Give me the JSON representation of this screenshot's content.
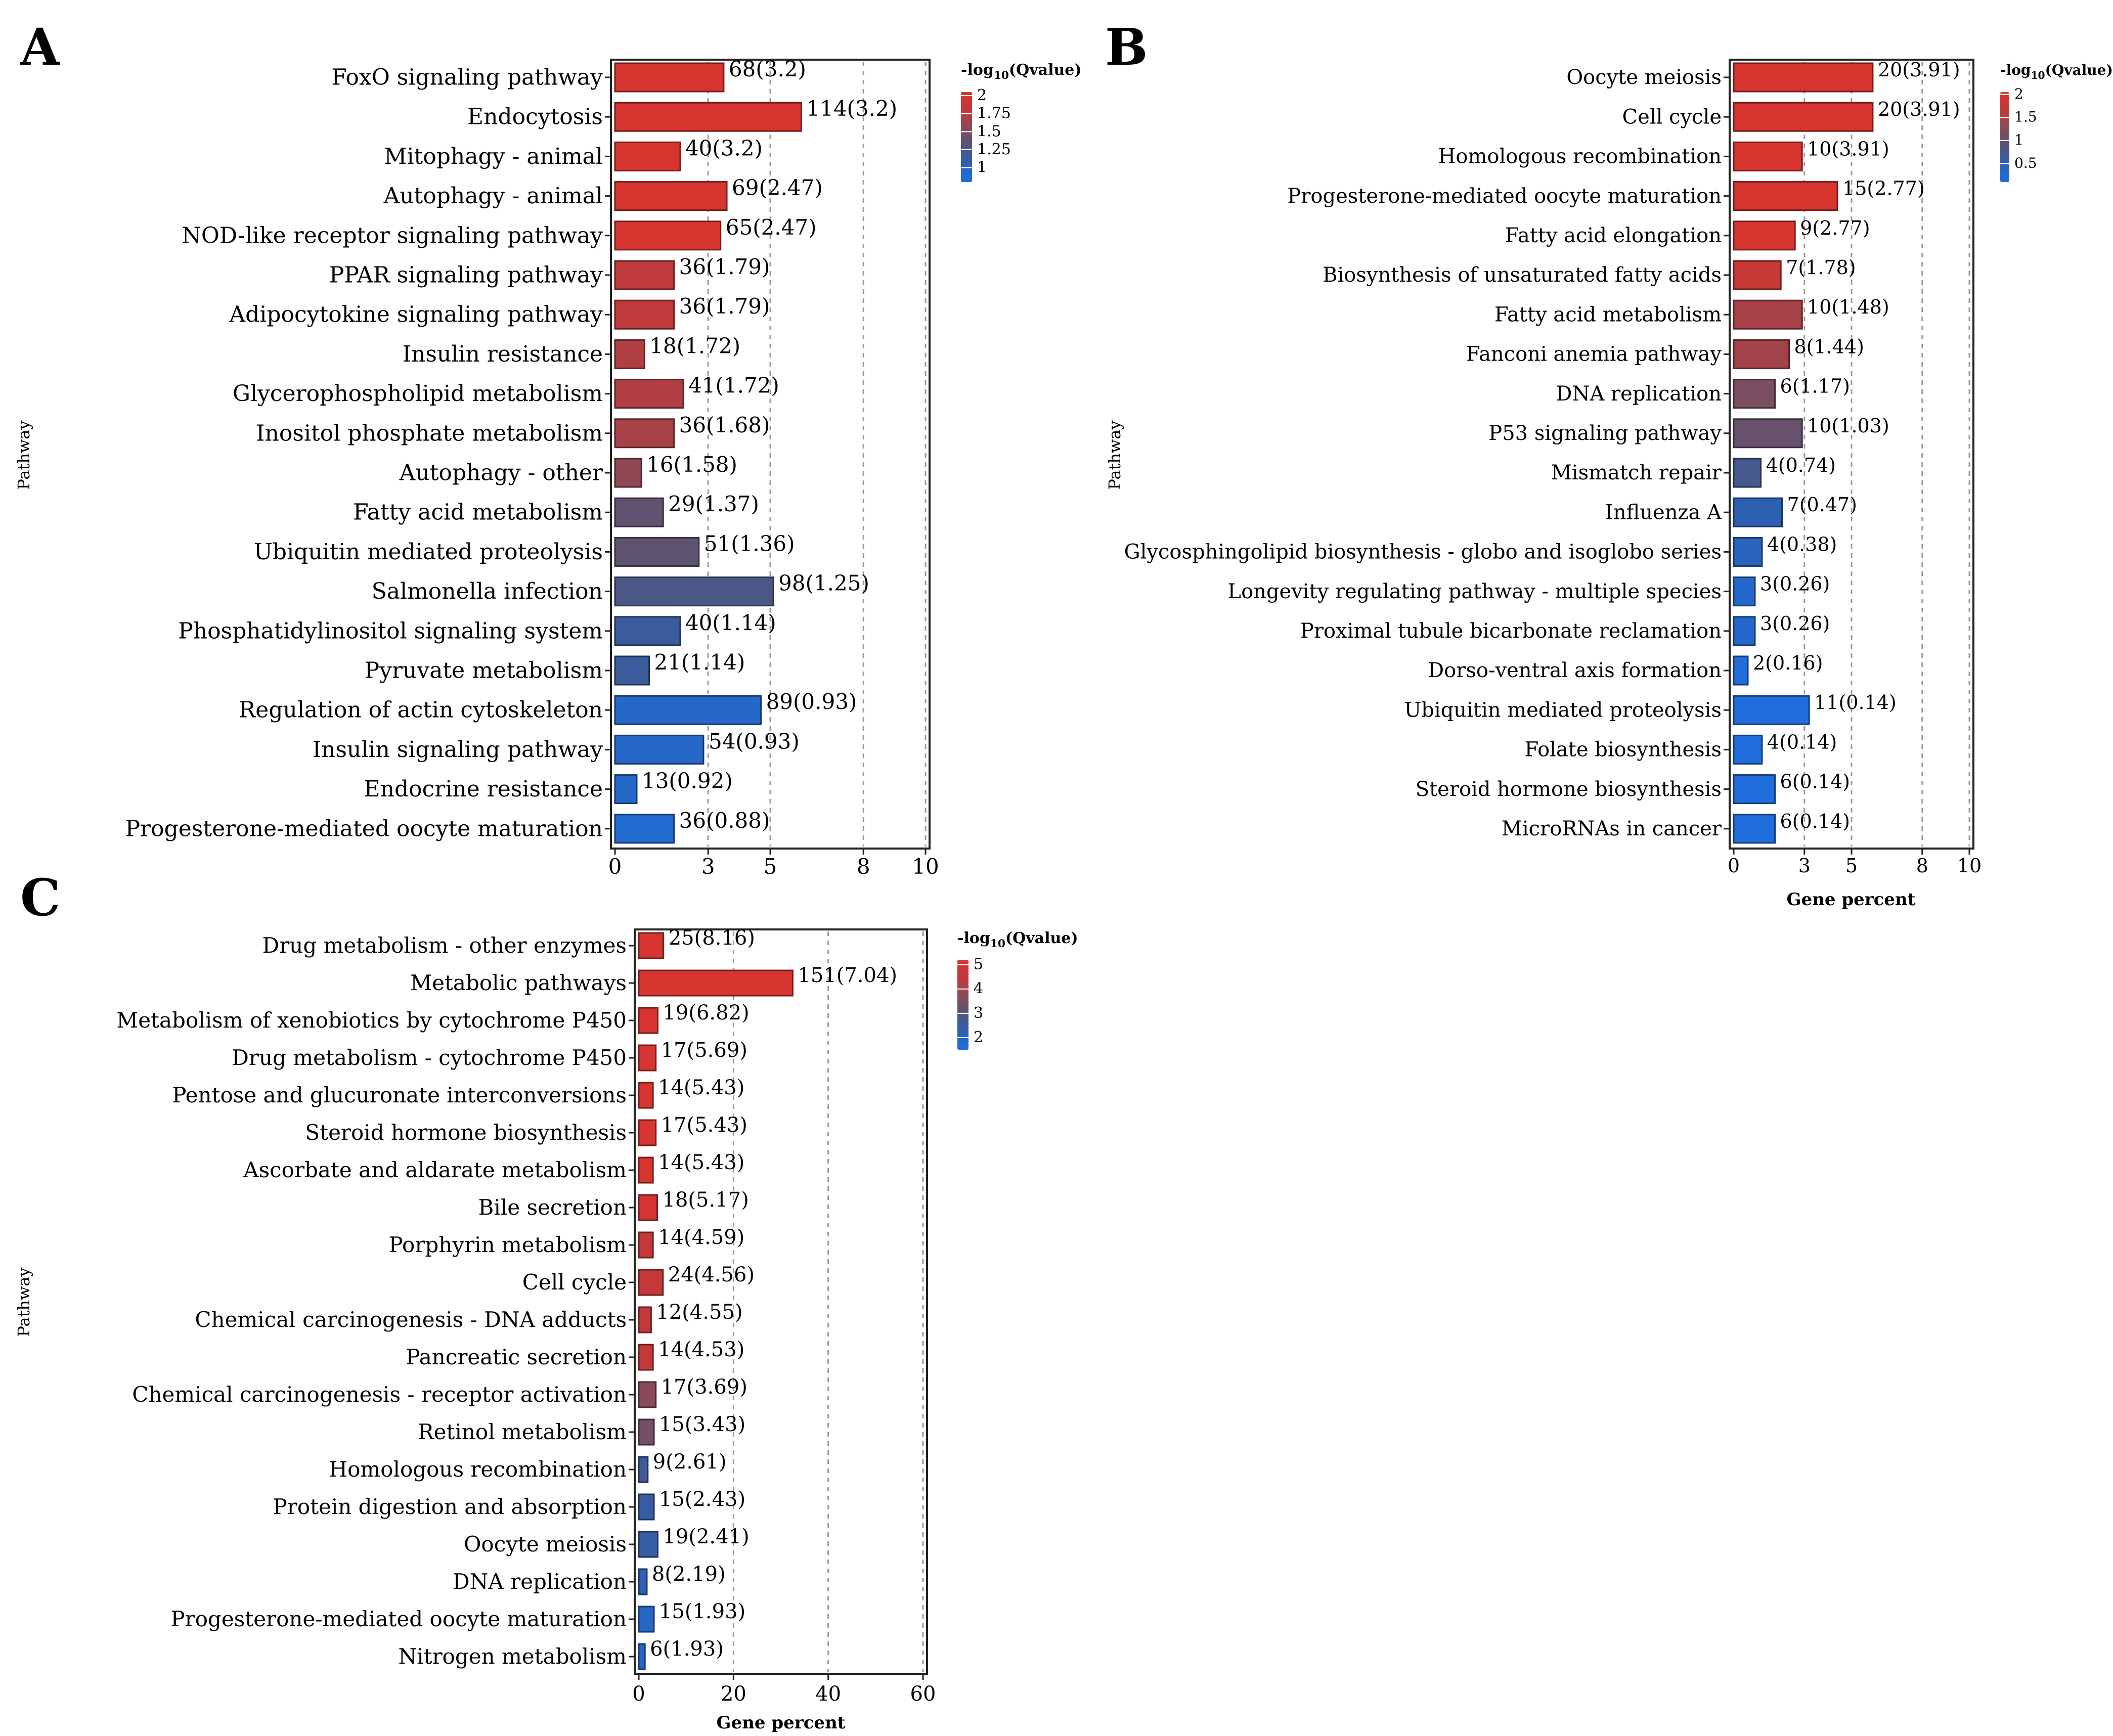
{
  "figure": {
    "panel_letters": [
      "A",
      "B",
      "C"
    ]
  },
  "chart_data": [
    {
      "panel": "A",
      "type": "bar",
      "orientation": "horizontal",
      "ylabel": "Pathway",
      "xlabel": "",
      "xlim": [
        0,
        10
      ],
      "xticks": [
        0,
        3,
        5,
        8,
        10
      ],
      "categories": [
        "FoxO signaling pathway",
        "Endocytosis",
        "Mitophagy - animal",
        "Autophagy - animal",
        "NOD-like receptor signaling pathway",
        "PPAR signaling pathway",
        "Adipocytokine signaling pathway",
        "Insulin resistance",
        "Glycerophospholipid metabolism",
        "Inositol phosphate metabolism",
        "Autophagy - other",
        "Fatty acid metabolism",
        "Ubiquitin mediated proteolysis",
        "Salmonella infection",
        "Phosphatidylinositol signaling system",
        "Pyruvate metabolism",
        "Regulation of actin cytoskeleton",
        "Insulin signaling pathway",
        "Endocrine resistance",
        "Progesterone-mediated oocyte maturation"
      ],
      "values": [
        3.5,
        6.0,
        2.1,
        3.6,
        3.4,
        1.9,
        1.9,
        0.95,
        2.2,
        1.9,
        0.85,
        1.55,
        2.7,
        5.1,
        2.1,
        1.1,
        4.7,
        2.85,
        0.7,
        1.9
      ],
      "qvalues": [
        3.2,
        3.2,
        3.2,
        2.47,
        2.47,
        1.79,
        1.79,
        1.72,
        1.72,
        1.68,
        1.58,
        1.37,
        1.36,
        1.25,
        1.14,
        1.14,
        0.93,
        0.93,
        0.92,
        0.88
      ],
      "labels": [
        "68(3.2)",
        "114(3.2)",
        "40(3.2)",
        "69(2.47)",
        "65(2.47)",
        "36(1.79)",
        "36(1.79)",
        "18(1.72)",
        "41(1.72)",
        "36(1.68)",
        "16(1.58)",
        "29(1.37)",
        "51(1.36)",
        "98(1.25)",
        "40(1.14)",
        "21(1.14)",
        "89(0.93)",
        "54(0.93)",
        "13(0.92)",
        "36(0.88)"
      ],
      "legend": {
        "title_prefix": "-log",
        "title_sub": "10",
        "title_suffix": "(Qvalue)",
        "range": [
          0.8,
          2.05
        ],
        "ticks": [
          {
            "v": 2,
            "label": "2"
          },
          {
            "v": 1.75,
            "label": "1.75"
          },
          {
            "v": 1.5,
            "label": "1.5"
          },
          {
            "v": 1.25,
            "label": "1.25"
          },
          {
            "v": 1,
            "label": "1"
          }
        ],
        "colors": [
          "#1e6fe0",
          "#2f5fb0",
          "#52557a",
          "#8a4b58",
          "#c0393a",
          "#d63530"
        ]
      }
    },
    {
      "panel": "B",
      "type": "bar",
      "orientation": "horizontal",
      "ylabel": "Pathway",
      "xlabel": "Gene percent",
      "xlim": [
        0,
        10
      ],
      "xticks": [
        0,
        3,
        5,
        8,
        10
      ],
      "categories": [
        "Oocyte meiosis",
        "Cell cycle",
        "Homologous recombination",
        "Progesterone-mediated oocyte maturation",
        "Fatty acid elongation",
        "Biosynthesis of unsaturated fatty acids",
        "Fatty acid metabolism",
        "Fanconi anemia pathway",
        "DNA replication",
        "P53 signaling pathway",
        "Mismatch repair",
        "Influenza A",
        "Glycosphingolipid biosynthesis - globo and isoglobo series",
        "Longevity regulating pathway - multiple species",
        "Proximal tubule bicarbonate reclamation",
        "Dorso-ventral axis formation",
        "Ubiquitin mediated proteolysis",
        "Folate biosynthesis",
        "Steroid hormone biosynthesis",
        "MicroRNAs in cancer"
      ],
      "values": [
        5.9,
        5.9,
        2.9,
        4.4,
        2.6,
        2.0,
        2.9,
        2.35,
        1.75,
        2.9,
        1.15,
        2.05,
        1.2,
        0.9,
        0.9,
        0.6,
        3.2,
        1.2,
        1.75,
        1.75
      ],
      "qvalues": [
        3.91,
        3.91,
        3.91,
        2.77,
        2.77,
        1.78,
        1.48,
        1.44,
        1.17,
        1.03,
        0.74,
        0.47,
        0.38,
        0.26,
        0.26,
        0.16,
        0.14,
        0.14,
        0.14,
        0.14
      ],
      "labels": [
        "20(3.91)",
        "20(3.91)",
        "10(3.91)",
        "15(2.77)",
        "9(2.77)",
        "7(1.78)",
        "10(1.48)",
        "8(1.44)",
        "6(1.17)",
        "10(1.03)",
        "4(0.74)",
        "7(0.47)",
        "4(0.38)",
        "3(0.26)",
        "3(0.26)",
        "2(0.16)",
        "11(0.14)",
        "4(0.14)",
        "6(0.14)",
        "6(0.14)"
      ],
      "legend": {
        "title_prefix": "-log",
        "title_sub": "10",
        "title_suffix": "(Qvalue)",
        "range": [
          0.1,
          2.05
        ],
        "ticks": [
          {
            "v": 2,
            "label": "2"
          },
          {
            "v": 1.5,
            "label": "1.5"
          },
          {
            "v": 1,
            "label": "1"
          },
          {
            "v": 0.5,
            "label": "0.5"
          }
        ],
        "colors": [
          "#1e6fe0",
          "#2f5fb0",
          "#52557a",
          "#8a4b58",
          "#c0393a",
          "#d63530"
        ]
      }
    },
    {
      "panel": "C",
      "type": "bar",
      "orientation": "horizontal",
      "ylabel": "Pathway",
      "xlabel": "Gene percent",
      "xlim": [
        0,
        60
      ],
      "xticks": [
        0,
        20,
        40,
        60
      ],
      "categories": [
        "Drug metabolism - other enzymes",
        "Metabolic pathways",
        "Metabolism of xenobiotics by cytochrome P450",
        "Drug metabolism - cytochrome P450",
        "Pentose and glucuronate interconversions",
        "Steroid hormone biosynthesis",
        "Ascorbate and aldarate metabolism",
        "Bile secretion",
        "Porphyrin metabolism",
        "Cell cycle",
        "Chemical carcinogenesis - DNA adducts",
        "Pancreatic secretion",
        "Chemical carcinogenesis - receptor activation",
        "Retinol metabolism",
        "Homologous recombination",
        "Protein digestion and absorption",
        "Oocyte meiosis",
        "DNA replication",
        "Progesterone-mediated oocyte maturation",
        "Nitrogen metabolism"
      ],
      "values": [
        5.2,
        32.5,
        4.0,
        3.6,
        3.0,
        3.6,
        3.0,
        3.9,
        3.0,
        5.1,
        2.6,
        3.0,
        3.6,
        3.2,
        1.9,
        3.2,
        4.0,
        1.7,
        3.2,
        1.3
      ],
      "qvalues": [
        8.16,
        7.04,
        6.82,
        5.69,
        5.43,
        5.43,
        5.43,
        5.17,
        4.59,
        4.56,
        4.55,
        4.53,
        3.69,
        3.43,
        2.61,
        2.43,
        2.41,
        2.19,
        1.93,
        1.93
      ],
      "labels": [
        "25(8.16)",
        "151(7.04)",
        "19(6.82)",
        "17(5.69)",
        "14(5.43)",
        "17(5.43)",
        "14(5.43)",
        "18(5.17)",
        "14(4.59)",
        "24(4.56)",
        "12(4.55)",
        "14(4.53)",
        "17(3.69)",
        "15(3.43)",
        "9(2.61)",
        "15(2.43)",
        "19(2.41)",
        "8(2.19)",
        "15(1.93)",
        "6(1.93)"
      ],
      "legend": {
        "title_prefix": "-log",
        "title_sub": "10",
        "title_suffix": "(Qvalue)",
        "range": [
          1.5,
          5.2
        ],
        "ticks": [
          {
            "v": 5,
            "label": "5"
          },
          {
            "v": 4,
            "label": "4"
          },
          {
            "v": 3,
            "label": "3"
          },
          {
            "v": 2,
            "label": "2"
          }
        ],
        "colors": [
          "#1e6fe0",
          "#2f5fb0",
          "#52557a",
          "#8a4b58",
          "#c0393a",
          "#d63530"
        ]
      }
    }
  ]
}
